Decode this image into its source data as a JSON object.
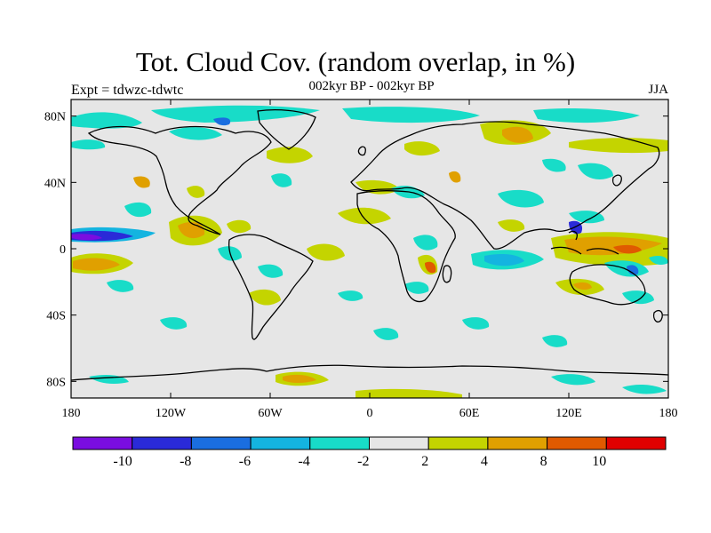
{
  "title": "Tot. Cloud Cov. (random overlap, in %)",
  "subtitle": "002kyr BP - 002kyr BP",
  "left_label": "Expt = tdwzc-tdwtc",
  "right_label": "JJA",
  "map": {
    "projection": "cylindrical equidistant",
    "lon_range": [
      -180,
      180
    ],
    "lat_range": [
      -90,
      90
    ],
    "background_color": "#e6e6e6",
    "lat_ticks": [
      {
        "value": 80,
        "label": "80N"
      },
      {
        "value": 40,
        "label": "40N"
      },
      {
        "value": 0,
        "label": "0"
      },
      {
        "value": -40,
        "label": "40S"
      },
      {
        "value": -80,
        "label": "80S"
      }
    ],
    "lon_ticks": [
      {
        "value": -180,
        "label": "180"
      },
      {
        "value": -120,
        "label": "120W"
      },
      {
        "value": -60,
        "label": "60W"
      },
      {
        "value": 0,
        "label": "0"
      },
      {
        "value": 60,
        "label": "60E"
      },
      {
        "value": 120,
        "label": "120E"
      },
      {
        "value": 180,
        "label": "180"
      }
    ]
  },
  "colorbar": {
    "colors": [
      "#7a0de0",
      "#2a2ad8",
      "#1a6ee0",
      "#14b4e0",
      "#18dcc8",
      "#e6e6e6",
      "#c4d400",
      "#e0a000",
      "#e05a00",
      "#e00000"
    ],
    "labels": [
      "-10",
      "-8",
      "-6",
      "-4",
      "-2",
      "2",
      "4",
      "8",
      "10"
    ]
  }
}
